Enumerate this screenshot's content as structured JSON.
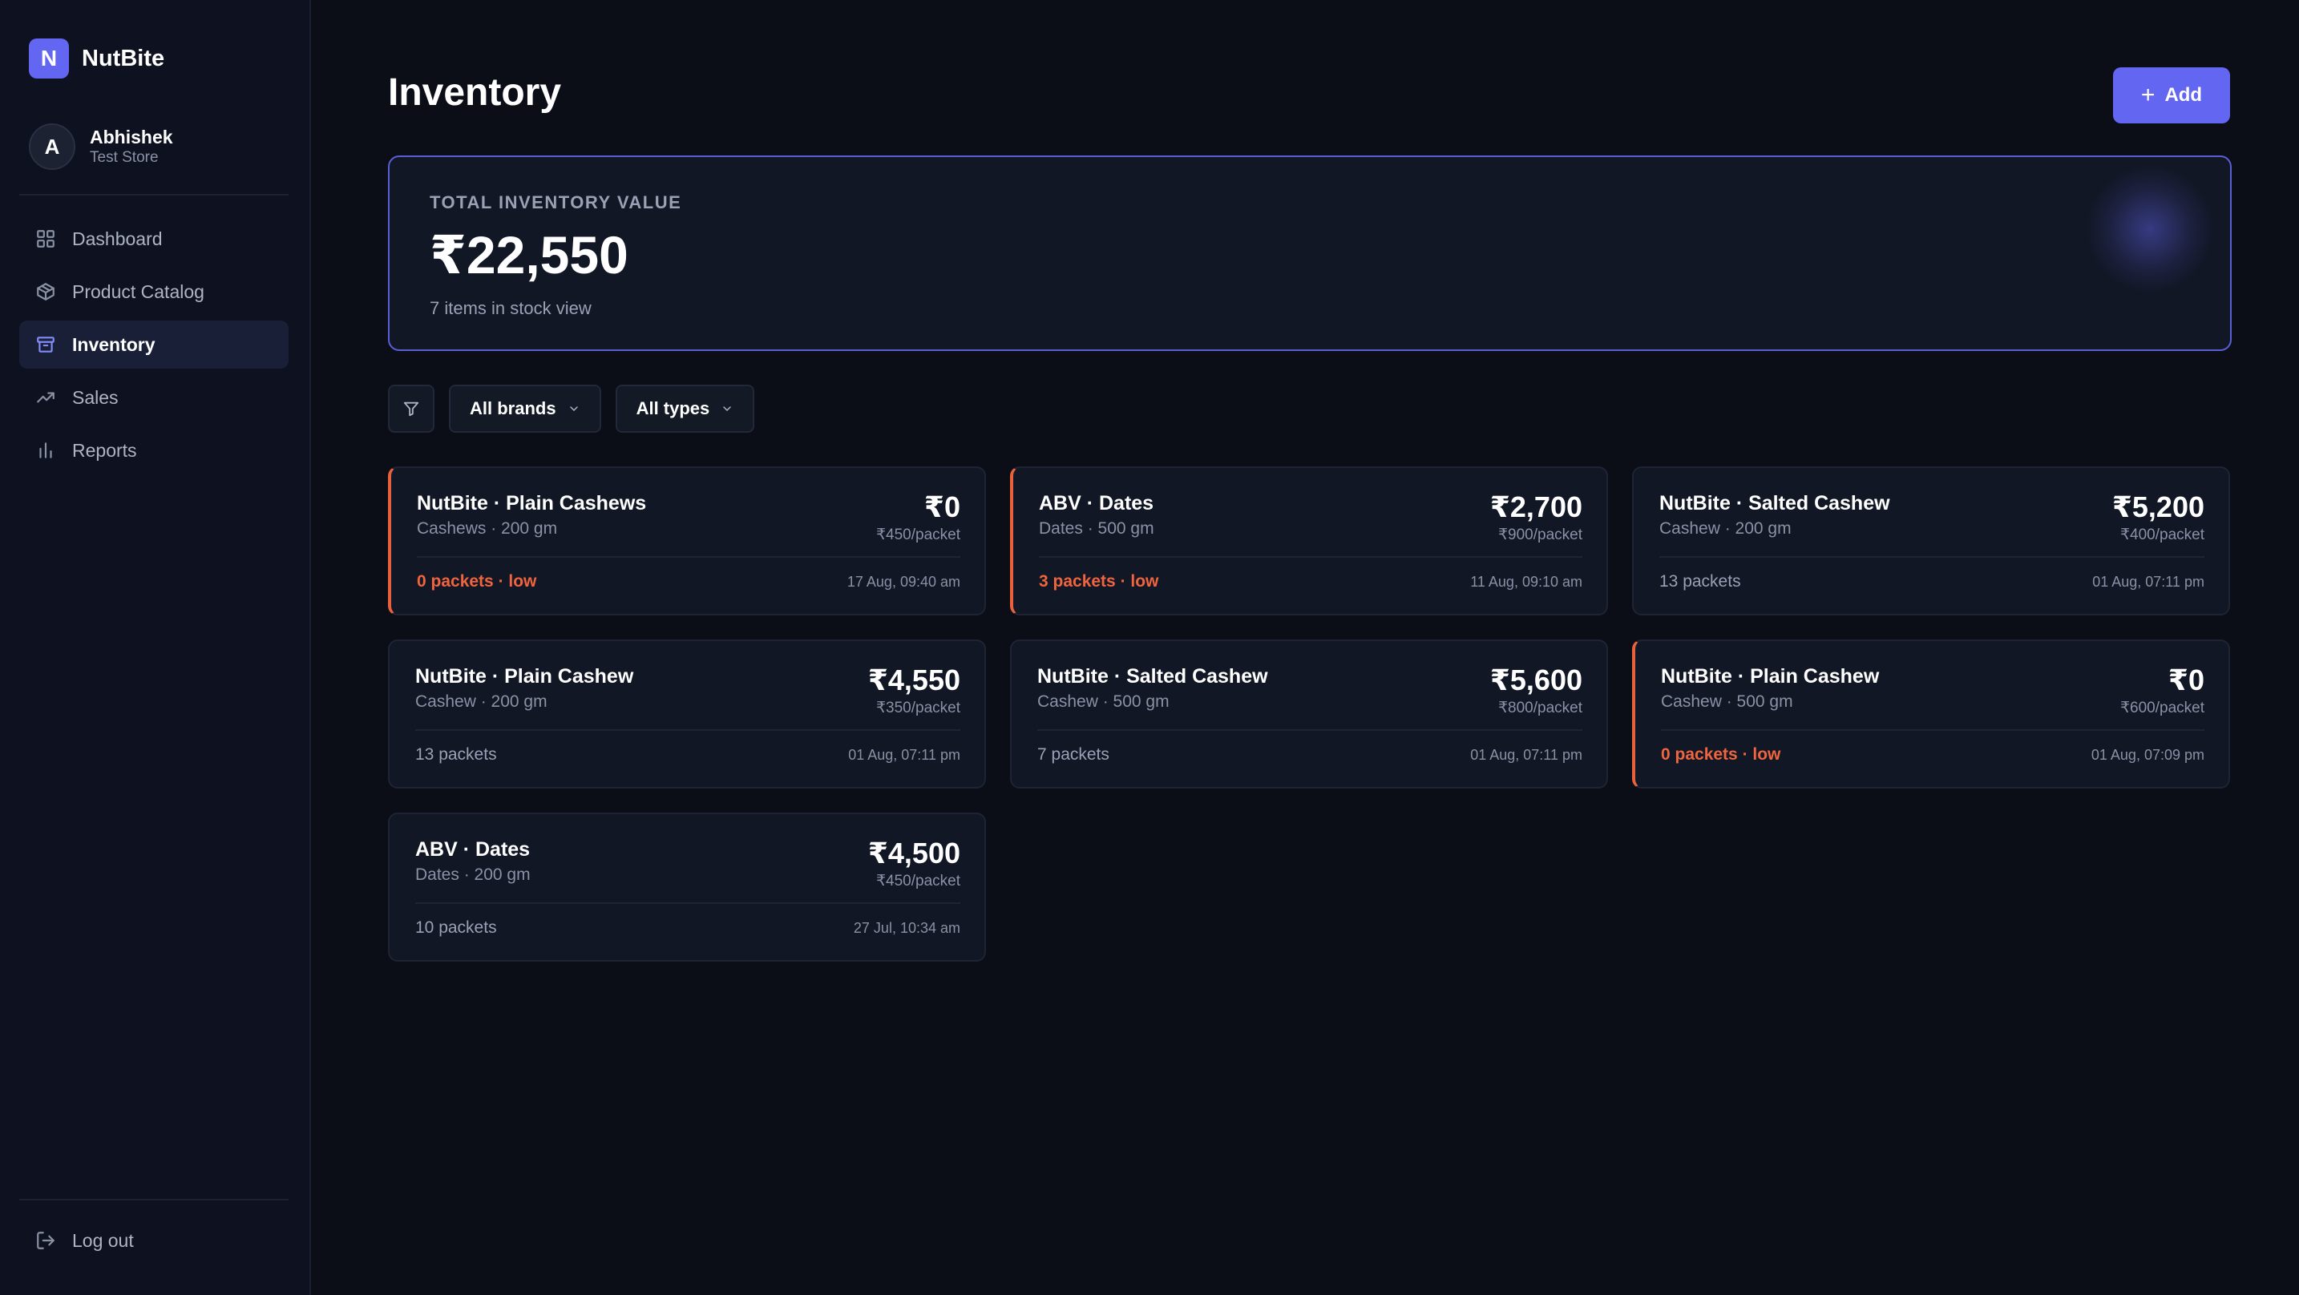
{
  "brand": {
    "logo_letter": "N",
    "name": "NutBite",
    "accent": "#6366f1"
  },
  "user": {
    "initial": "A",
    "name": "Abhishek",
    "store": "Test Store"
  },
  "nav": [
    {
      "label": "Dashboard",
      "icon": "grid-icon",
      "active": false
    },
    {
      "label": "Product Catalog",
      "icon": "package-icon",
      "active": false
    },
    {
      "label": "Inventory",
      "icon": "archive-icon",
      "active": true
    },
    {
      "label": "Sales",
      "icon": "trending-up-icon",
      "active": false
    },
    {
      "label": "Reports",
      "icon": "bar-chart-icon",
      "active": false
    }
  ],
  "logout_label": "Log out",
  "page": {
    "title": "Inventory",
    "add_label": "Add"
  },
  "summary": {
    "label": "TOTAL INVENTORY VALUE",
    "value": "₹22,550",
    "subtitle": "7 items in stock view"
  },
  "filters": {
    "brand": "All brands",
    "type": "All types"
  },
  "items": [
    {
      "title": "NutBite · Plain Cashews",
      "sub": "Cashews · 200 gm",
      "price": "₹0",
      "unit": "₹450/packet",
      "stock": "0 packets · low",
      "date": "17 Aug, 09:40 am",
      "low": true
    },
    {
      "title": "ABV · Dates",
      "sub": "Dates · 500 gm",
      "price": "₹2,700",
      "unit": "₹900/packet",
      "stock": "3 packets · low",
      "date": "11 Aug, 09:10 am",
      "low": true
    },
    {
      "title": "NutBite · Salted Cashew",
      "sub": "Cashew · 200 gm",
      "price": "₹5,200",
      "unit": "₹400/packet",
      "stock": "13 packets",
      "date": "01 Aug, 07:11 pm",
      "low": false
    },
    {
      "title": "NutBite · Plain Cashew",
      "sub": "Cashew · 200 gm",
      "price": "₹4,550",
      "unit": "₹350/packet",
      "stock": "13 packets",
      "date": "01 Aug, 07:11 pm",
      "low": false
    },
    {
      "title": "NutBite · Salted Cashew",
      "sub": "Cashew · 500 gm",
      "price": "₹5,600",
      "unit": "₹800/packet",
      "stock": "7 packets",
      "date": "01 Aug, 07:11 pm",
      "low": false
    },
    {
      "title": "NutBite · Plain Cashew",
      "sub": "Cashew · 500 gm",
      "price": "₹0",
      "unit": "₹600/packet",
      "stock": "0 packets · low",
      "date": "01 Aug, 07:09 pm",
      "low": true
    },
    {
      "title": "ABV · Dates",
      "sub": "Dates · 200 gm",
      "price": "₹4,500",
      "unit": "₹450/packet",
      "stock": "10 packets",
      "date": "27 Jul, 10:34 am",
      "low": false
    }
  ]
}
